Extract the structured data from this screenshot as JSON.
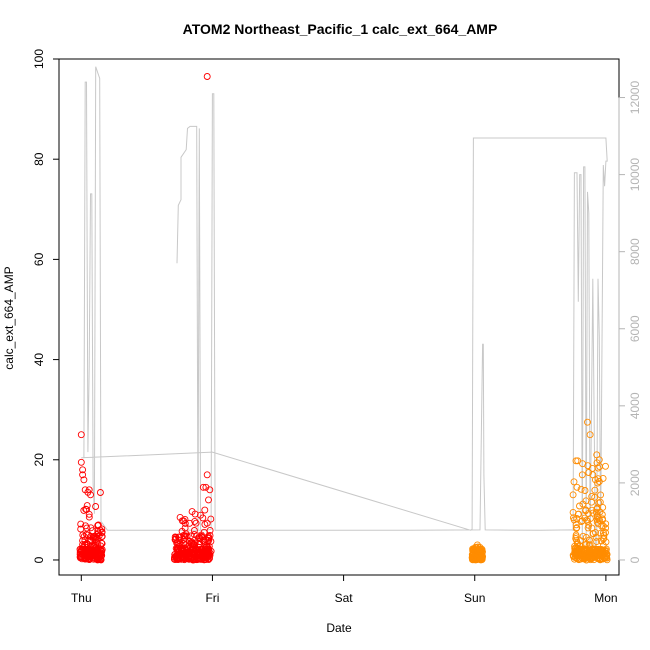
{
  "chart_data": {
    "type": "scatter",
    "title": "ATOM2 Northeast_Pacific_1 calc_ext_664_AMP",
    "xlabel": "Date",
    "ylabel": "calc_ext_664_AMP",
    "x_ticks": [
      "Thu",
      "Fri",
      "Sat",
      "Sun",
      "Mon"
    ],
    "x_units": "days since Thu 00:00 (Thu=0, Mon=4)",
    "xlim": [
      -0.17,
      4.1
    ],
    "ylim": [
      -3,
      100
    ],
    "y_ticks": [
      0,
      20,
      40,
      60,
      80,
      100
    ],
    "y2lim": [
      -390,
      13000
    ],
    "y2_ticks": [
      0,
      2000,
      4000,
      6000,
      8000,
      10000,
      12000
    ],
    "grid": false,
    "colors": {
      "series_a": "#ff0000",
      "series_b": "#ff8c00",
      "secondary_line": "#c8c8c8",
      "axis": "#000000",
      "secondary_axis_text": "#b4b4b4"
    },
    "series": [
      {
        "color": "#ff0000",
        "marker": "open-circle",
        "clusters": [
          {
            "x_range": [
              -0.01,
              0.16
            ],
            "dense_y_range": [
              0,
              14
            ],
            "peaks": [
              {
                "x": 0.0,
                "y": 25
              },
              {
                "x": 0.0,
                "y": 19.5
              },
              {
                "x": 0.01,
                "y": 18
              },
              {
                "x": 0.01,
                "y": 17
              },
              {
                "x": 0.02,
                "y": 16
              },
              {
                "x": 0.03,
                "y": 14
              },
              {
                "x": 0.05,
                "y": 13.5
              },
              {
                "x": 0.06,
                "y": 14
              },
              {
                "x": 0.07,
                "y": 13
              }
            ]
          },
          {
            "x_range": [
              0.71,
              0.99
            ],
            "dense_y_range": [
              0,
              10
            ],
            "peaks": [
              {
                "x": 0.96,
                "y": 96.5
              },
              {
                "x": 0.96,
                "y": 17
              },
              {
                "x": 0.95,
                "y": 14.5
              },
              {
                "x": 0.93,
                "y": 14.5
              },
              {
                "x": 0.98,
                "y": 14
              },
              {
                "x": 0.97,
                "y": 12
              }
            ]
          }
        ]
      },
      {
        "color": "#ff8c00",
        "marker": "open-circle",
        "clusters": [
          {
            "x_range": [
              2.98,
              3.06
            ],
            "dense_y_range": [
              0,
              3
            ],
            "peaks": [
              {
                "x": 3.02,
                "y": 3
              },
              {
                "x": 3.04,
                "y": 2.5
              }
            ]
          },
          {
            "x_range": [
              3.75,
              4.01
            ],
            "dense_y_range": [
              0,
              20
            ],
            "peaks": [
              {
                "x": 3.86,
                "y": 27.5
              },
              {
                "x": 3.88,
                "y": 25
              },
              {
                "x": 3.93,
                "y": 21
              },
              {
                "x": 3.95,
                "y": 20
              },
              {
                "x": 3.82,
                "y": 17
              },
              {
                "x": 3.9,
                "y": 17
              },
              {
                "x": 3.75,
                "y": 13
              },
              {
                "x": 3.75,
                "y": 9.5
              },
              {
                "x": 3.92,
                "y": 16
              }
            ]
          }
        ]
      }
    ],
    "secondary_line": {
      "axis": "right",
      "points": [
        [
          0.0,
          2650
        ],
        [
          0.02,
          2650
        ],
        [
          0.03,
          12400
        ],
        [
          0.04,
          12400
        ],
        [
          0.05,
          2800
        ],
        [
          0.06,
          5000
        ],
        [
          0.07,
          9500
        ],
        [
          0.08,
          9500
        ],
        [
          0.09,
          2000
        ],
        [
          0.1,
          1200
        ],
        [
          0.11,
          12800
        ],
        [
          0.13,
          12600
        ],
        [
          0.14,
          12500
        ],
        [
          0.15,
          1000
        ],
        [
          0.2,
          770
        ],
        [
          0.5,
          770
        ],
        [
          0.9,
          770
        ],
        [
          0.95,
          770
        ],
        [
          0.99,
          790
        ],
        [
          1.0,
          12100
        ],
        [
          1.01,
          12100
        ],
        [
          1.02,
          770
        ],
        [
          1.1,
          770
        ],
        [
          2.5,
          770
        ],
        [
          3.04,
          780
        ],
        [
          3.06,
          5600
        ],
        [
          3.065,
          5600
        ],
        [
          3.07,
          2200
        ],
        [
          3.08,
          780
        ],
        [
          3.5,
          770
        ],
        [
          3.74,
          780
        ],
        [
          3.75,
          770
        ],
        [
          3.76,
          10050
        ],
        [
          3.77,
          10050
        ],
        [
          3.78,
          10050
        ],
        [
          3.79,
          6700
        ],
        [
          3.8,
          10000
        ],
        [
          3.81,
          10000
        ],
        [
          3.82,
          300
        ],
        [
          3.83,
          10200
        ],
        [
          3.84,
          10200
        ],
        [
          3.85,
          400
        ],
        [
          3.86,
          9550
        ],
        [
          3.87,
          9000
        ],
        [
          3.88,
          350
        ],
        [
          3.9,
          7300
        ],
        [
          3.92,
          300
        ],
        [
          3.93,
          400
        ],
        [
          3.94,
          7300
        ],
        [
          3.95,
          5800
        ],
        [
          3.96,
          600
        ],
        [
          3.98,
          10250
        ],
        [
          3.99,
          9700
        ],
        [
          4.0,
          10350
        ],
        [
          4.01,
          10350
        ],
        [
          4.0,
          10950
        ],
        [
          3.0,
          10950
        ],
        [
          2.99,
          10950
        ],
        [
          2.98,
          800
        ],
        [
          2.97,
          770
        ],
        [
          1.0,
          2800
        ],
        [
          0.0,
          2650
        ]
      ],
      "branch": [
        [
          0.73,
          7700
        ],
        [
          0.74,
          9200
        ],
        [
          0.76,
          9350
        ],
        [
          0.76,
          10450
        ],
        [
          0.8,
          10650
        ],
        [
          0.81,
          11200
        ],
        [
          0.83,
          11250
        ],
        [
          0.88,
          11250
        ],
        [
          0.89,
          770
        ],
        [
          0.9,
          11200
        ],
        [
          0.91,
          770
        ],
        [
          0.92,
          770
        ]
      ]
    }
  }
}
